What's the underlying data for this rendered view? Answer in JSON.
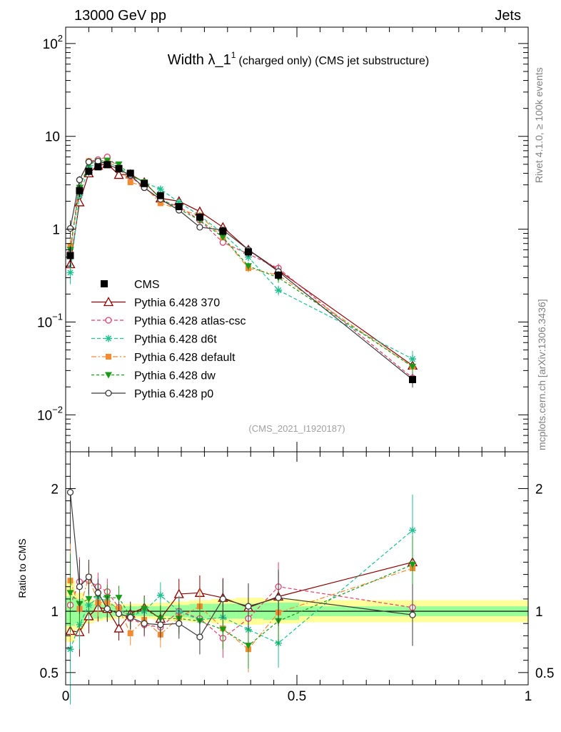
{
  "header": {
    "left": "13000 GeV pp",
    "right": "Jets"
  },
  "side": {
    "rivet": "Rivet 4.1.0, ≥ 100k events",
    "mcplots": "mcplots.cern.ch [arXiv:1306.3436]"
  },
  "title": {
    "main": "Width λ_1",
    "sup": "1",
    "sub": "(charged only) (CMS jet substructure)"
  },
  "watermark": "(CMS_2021_I1920187)",
  "ratio_label": "Ratio to CMS",
  "chart_data": {
    "type": "line",
    "x": [
      0.01,
      0.03,
      0.05,
      0.07,
      0.09,
      0.115,
      0.14,
      0.17,
      0.205,
      0.245,
      0.29,
      0.34,
      0.395,
      0.46,
      0.75
    ],
    "xlim": [
      0,
      1
    ],
    "main_ylim": [
      0.004,
      150
    ],
    "main_yscale": "log",
    "ratio_ylim": [
      0.4,
      2.3
    ],
    "x_ticks": [
      {
        "v": 0,
        "label": "0"
      },
      {
        "v": 0.5,
        "label": "0.5"
      },
      {
        "v": 1,
        "label": "1"
      }
    ],
    "main_y_ticks": [
      {
        "v": 100,
        "base": "10",
        "exp": "2"
      },
      {
        "v": 10,
        "base": "10",
        "exp": ""
      },
      {
        "v": 1,
        "base": "1",
        "exp": ""
      },
      {
        "v": 0.1,
        "base": "10",
        "exp": "−1"
      },
      {
        "v": 0.01,
        "base": "10",
        "exp": "−2"
      }
    ],
    "ratio_y_ticks": [
      {
        "v": 2,
        "label": "2"
      },
      {
        "v": 1,
        "label": "1"
      },
      {
        "v": 0.5,
        "label": "0.5"
      }
    ],
    "reference": {
      "name": "CMS",
      "values": [
        0.52,
        2.6,
        4.2,
        4.7,
        4.95,
        4.5,
        4.0,
        3.1,
        2.3,
        1.75,
        1.35,
        0.95,
        0.57,
        0.32,
        0.024
      ],
      "band_stat": [
        0.12,
        0.1,
        0.07,
        0.06,
        0.05,
        0.04,
        0.04,
        0.04,
        0.04,
        0.05,
        0.06,
        0.06,
        0.06,
        0.07,
        0.04
      ],
      "band_total": [
        0.25,
        0.15,
        0.1,
        0.08,
        0.07,
        0.06,
        0.06,
        0.06,
        0.07,
        0.08,
        0.09,
        0.1,
        0.11,
        0.1,
        0.09
      ]
    },
    "series": [
      {
        "name": "Pythia 6.428 370",
        "color": "#8b0000",
        "marker": "open-triangle",
        "dash": "",
        "values": [
          0.42,
          1.95,
          4.0,
          4.85,
          5.05,
          3.85,
          3.9,
          3.2,
          2.15,
          2.0,
          1.55,
          1.05,
          0.6,
          0.36,
          0.034
        ],
        "ratio": [
          0.84,
          0.83,
          0.96,
          1.03,
          1.02,
          0.86,
          0.98,
          1.03,
          0.94,
          1.14,
          1.15,
          1.11,
          1.03,
          1.12,
          1.4
        ],
        "ratio_err": [
          0.12,
          0.08,
          0.06,
          0.05,
          0.05,
          0.05,
          0.05,
          0.05,
          0.05,
          0.06,
          0.07,
          0.08,
          0.1,
          0.12,
          0.16
        ]
      },
      {
        "name": "Pythia 6.428 atlas-csc",
        "color": "#e0406a",
        "marker": "open-circle",
        "dash": "5,3",
        "values": [
          0.55,
          3.4,
          5.4,
          5.6,
          6.0,
          4.6,
          3.7,
          2.8,
          2.05,
          1.75,
          1.25,
          0.72,
          0.54,
          0.38,
          0.025
        ],
        "ratio": [
          1.05,
          1.24,
          1.25,
          1.2,
          1.16,
          1.03,
          0.94,
          0.89,
          0.87,
          1.0,
          0.94,
          0.78,
          0.94,
          1.2,
          1.03
        ],
        "ratio_err": [
          0.2,
          0.08,
          0.06,
          0.05,
          0.05,
          0.05,
          0.05,
          0.05,
          0.05,
          0.06,
          0.07,
          0.08,
          0.1,
          0.12,
          0.2
        ]
      },
      {
        "name": "Pythia 6.428 d6t",
        "color": "#20c090",
        "marker": "star",
        "dash": "5,3",
        "values": [
          0.34,
          2.3,
          4.6,
          5.2,
          5.3,
          4.6,
          3.8,
          3.2,
          2.7,
          1.95,
          1.4,
          0.9,
          0.5,
          0.22,
          0.04
        ],
        "ratio": [
          0.69,
          0.89,
          1.05,
          1.11,
          1.08,
          1.02,
          0.96,
          1.0,
          1.13,
          1.0,
          0.93,
          0.95,
          0.85,
          0.74,
          1.66
        ],
        "ratio_err": [
          0.25,
          0.08,
          0.06,
          0.05,
          0.05,
          0.05,
          0.05,
          0.05,
          0.05,
          0.06,
          0.07,
          0.08,
          0.1,
          0.12,
          0.22
        ]
      },
      {
        "name": "Pythia 6.428 default",
        "color": "#f58a30",
        "marker": "filled-square",
        "dash": "7,3,2,3",
        "values": [
          0.66,
          2.7,
          5.4,
          5.0,
          5.3,
          4.6,
          3.2,
          2.9,
          1.9,
          1.65,
          1.4,
          0.82,
          0.38,
          0.32,
          0.033
        ],
        "ratio": [
          1.25,
          1.02,
          1.28,
          1.07,
          1.07,
          1.02,
          0.82,
          0.93,
          0.81,
          0.95,
          1.04,
          0.86,
          0.69,
          0.99,
          1.35
        ],
        "ratio_err": [
          0.3,
          0.08,
          0.06,
          0.05,
          0.05,
          0.05,
          0.05,
          0.05,
          0.05,
          0.06,
          0.07,
          0.08,
          0.1,
          0.12,
          0.16
        ]
      },
      {
        "name": "Pythia 6.428 dw",
        "color": "#1a9a1a",
        "marker": "filled-triangle-down",
        "dash": "4,3",
        "values": [
          0.6,
          2.8,
          5.0,
          5.4,
          5.5,
          5.0,
          3.8,
          3.2,
          2.15,
          1.65,
          1.25,
          0.82,
          0.4,
          0.3,
          0.033
        ],
        "ratio": [
          1.15,
          1.06,
          1.1,
          1.13,
          1.11,
          1.11,
          0.96,
          1.02,
          0.94,
          0.94,
          0.92,
          0.85,
          0.72,
          0.92,
          1.38
        ],
        "ratio_err": [
          0.12,
          0.08,
          0.06,
          0.05,
          0.05,
          0.05,
          0.05,
          0.05,
          0.05,
          0.06,
          0.07,
          0.08,
          0.1,
          0.12,
          0.16
        ]
      },
      {
        "name": "Pythia 6.428 p0",
        "color": "#3a3a3a",
        "marker": "open-circle",
        "dash": "",
        "values": [
          1.02,
          3.4,
          5.3,
          5.4,
          5.05,
          4.4,
          3.8,
          2.8,
          2.1,
          1.6,
          1.05,
          0.98,
          0.6,
          0.35,
          0.024
        ],
        "ratio": [
          1.97,
          1.2,
          1.28,
          1.15,
          1.02,
          0.98,
          0.95,
          0.9,
          0.89,
          0.9,
          0.79,
          1.1,
          1.04,
          1.11,
          0.97
        ],
        "ratio_err": [
          0.22,
          0.1,
          0.06,
          0.05,
          0.05,
          0.05,
          0.05,
          0.05,
          0.05,
          0.06,
          0.07,
          0.08,
          0.1,
          0.15,
          0.18
        ]
      }
    ]
  }
}
